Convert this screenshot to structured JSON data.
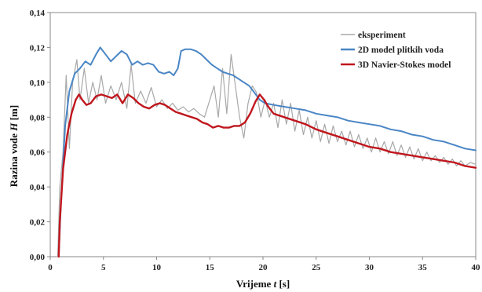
{
  "chart_data": {
    "type": "line",
    "xlabel_prefix": "Vrijeme ",
    "xlabel_var": "t",
    "xlabel_unit": " [s]",
    "ylabel_prefix": "Razina vode ",
    "ylabel_var": "H",
    "ylabel_unit": " [m]",
    "xlim": [
      0,
      40
    ],
    "ylim": [
      0,
      0.14
    ],
    "xticks": [
      "0",
      "5",
      "10",
      "15",
      "20",
      "25",
      "30",
      "35",
      "40"
    ],
    "yticks": [
      "0,00",
      "0,02",
      "0,04",
      "0,06",
      "0,08",
      "0,10",
      "0,12",
      "0,14"
    ],
    "grid": false,
    "legend_position": "top-right",
    "series": [
      {
        "name": "eksperiment",
        "color": "#a8a8a8",
        "points": [
          [
            0.7,
            0.0
          ],
          [
            0.9,
            0.04
          ],
          [
            1.2,
            0.06
          ],
          [
            1.5,
            0.104
          ],
          [
            1.8,
            0.062
          ],
          [
            2.1,
            0.1
          ],
          [
            2.5,
            0.113
          ],
          [
            2.8,
            0.09
          ],
          [
            3.2,
            0.108
          ],
          [
            3.6,
            0.088
          ],
          [
            4.0,
            0.1
          ],
          [
            4.4,
            0.09
          ],
          [
            4.8,
            0.104
          ],
          [
            5.2,
            0.088
          ],
          [
            5.7,
            0.098
          ],
          [
            6.2,
            0.09
          ],
          [
            6.7,
            0.1
          ],
          [
            7.2,
            0.085
          ],
          [
            7.6,
            0.11
          ],
          [
            8.0,
            0.088
          ],
          [
            8.5,
            0.095
          ],
          [
            9.0,
            0.088
          ],
          [
            9.5,
            0.097
          ],
          [
            10.0,
            0.086
          ],
          [
            10.5,
            0.09
          ],
          [
            11.0,
            0.085
          ],
          [
            11.5,
            0.088
          ],
          [
            12.0,
            0.084
          ],
          [
            12.5,
            0.086
          ],
          [
            13.0,
            0.083
          ],
          [
            13.5,
            0.085
          ],
          [
            14.0,
            0.082
          ],
          [
            14.5,
            0.08
          ],
          [
            15.0,
            0.09
          ],
          [
            15.4,
            0.098
          ],
          [
            15.8,
            0.08
          ],
          [
            16.2,
            0.108
          ],
          [
            16.6,
            0.082
          ],
          [
            17.0,
            0.116
          ],
          [
            17.4,
            0.098
          ],
          [
            17.8,
            0.08
          ],
          [
            18.2,
            0.068
          ],
          [
            18.6,
            0.088
          ],
          [
            19.0,
            0.098
          ],
          [
            19.4,
            0.094
          ],
          [
            19.8,
            0.08
          ],
          [
            20.2,
            0.09
          ],
          [
            20.6,
            0.08
          ],
          [
            21.0,
            0.088
          ],
          [
            21.4,
            0.074
          ],
          [
            21.8,
            0.09
          ],
          [
            22.2,
            0.076
          ],
          [
            22.6,
            0.088
          ],
          [
            23.0,
            0.072
          ],
          [
            23.4,
            0.084
          ],
          [
            23.8,
            0.07
          ],
          [
            24.2,
            0.08
          ],
          [
            24.6,
            0.068
          ],
          [
            25.0,
            0.078
          ],
          [
            25.4,
            0.066
          ],
          [
            25.8,
            0.076
          ],
          [
            26.2,
            0.065
          ],
          [
            26.6,
            0.075
          ],
          [
            27.0,
            0.066
          ],
          [
            27.4,
            0.072
          ],
          [
            27.8,
            0.064
          ],
          [
            28.2,
            0.072
          ],
          [
            28.6,
            0.063
          ],
          [
            29.0,
            0.07
          ],
          [
            29.4,
            0.062
          ],
          [
            29.8,
            0.068
          ],
          [
            30.2,
            0.06
          ],
          [
            30.6,
            0.068
          ],
          [
            31.0,
            0.06
          ],
          [
            31.4,
            0.066
          ],
          [
            31.8,
            0.059
          ],
          [
            32.2,
            0.066
          ],
          [
            32.6,
            0.058
          ],
          [
            33.0,
            0.064
          ],
          [
            33.4,
            0.057
          ],
          [
            33.8,
            0.063
          ],
          [
            34.2,
            0.056
          ],
          [
            34.6,
            0.062
          ],
          [
            35.0,
            0.055
          ],
          [
            35.4,
            0.06
          ],
          [
            35.8,
            0.055
          ],
          [
            36.2,
            0.058
          ],
          [
            36.6,
            0.054
          ],
          [
            37.0,
            0.057
          ],
          [
            37.4,
            0.053
          ],
          [
            37.8,
            0.056
          ],
          [
            38.2,
            0.052
          ],
          [
            38.6,
            0.055
          ],
          [
            39.0,
            0.052
          ],
          [
            39.5,
            0.054
          ],
          [
            40.0,
            0.053
          ]
        ]
      },
      {
        "name": "2D model plitkih voda",
        "color": "#4a86c5",
        "points": [
          [
            0.8,
            0.0
          ],
          [
            1.0,
            0.03
          ],
          [
            1.4,
            0.075
          ],
          [
            1.8,
            0.095
          ],
          [
            2.3,
            0.105
          ],
          [
            2.8,
            0.108
          ],
          [
            3.3,
            0.112
          ],
          [
            3.8,
            0.11
          ],
          [
            4.3,
            0.116
          ],
          [
            4.7,
            0.12
          ],
          [
            5.2,
            0.116
          ],
          [
            5.7,
            0.112
          ],
          [
            6.2,
            0.115
          ],
          [
            6.7,
            0.118
          ],
          [
            7.2,
            0.116
          ],
          [
            7.7,
            0.11
          ],
          [
            8.2,
            0.112
          ],
          [
            8.7,
            0.11
          ],
          [
            9.2,
            0.111
          ],
          [
            9.7,
            0.11
          ],
          [
            10.2,
            0.106
          ],
          [
            10.7,
            0.105
          ],
          [
            11.2,
            0.106
          ],
          [
            11.6,
            0.104
          ],
          [
            12.0,
            0.108
          ],
          [
            12.3,
            0.118
          ],
          [
            12.7,
            0.119
          ],
          [
            13.2,
            0.119
          ],
          [
            13.7,
            0.118
          ],
          [
            14.2,
            0.116
          ],
          [
            14.7,
            0.113
          ],
          [
            15.2,
            0.11
          ],
          [
            15.7,
            0.108
          ],
          [
            16.2,
            0.106
          ],
          [
            16.7,
            0.105
          ],
          [
            17.2,
            0.104
          ],
          [
            17.7,
            0.102
          ],
          [
            18.2,
            0.1
          ],
          [
            18.7,
            0.098
          ],
          [
            19.2,
            0.094
          ],
          [
            19.7,
            0.09
          ],
          [
            20.2,
            0.088
          ],
          [
            21.0,
            0.087
          ],
          [
            22.0,
            0.086
          ],
          [
            23.0,
            0.085
          ],
          [
            24.0,
            0.084
          ],
          [
            25.0,
            0.082
          ],
          [
            26.0,
            0.081
          ],
          [
            27.0,
            0.08
          ],
          [
            28.0,
            0.078
          ],
          [
            29.0,
            0.077
          ],
          [
            30.0,
            0.076
          ],
          [
            31.0,
            0.075
          ],
          [
            32.0,
            0.073
          ],
          [
            33.0,
            0.072
          ],
          [
            34.0,
            0.07
          ],
          [
            35.0,
            0.069
          ],
          [
            36.0,
            0.067
          ],
          [
            37.0,
            0.066
          ],
          [
            38.0,
            0.064
          ],
          [
            39.0,
            0.062
          ],
          [
            40.0,
            0.061
          ]
        ]
      },
      {
        "name": "3D Navier-Stokes model",
        "color": "#c0161d",
        "points": [
          [
            0.8,
            0.0
          ],
          [
            0.9,
            0.02
          ],
          [
            1.2,
            0.05
          ],
          [
            1.6,
            0.07
          ],
          [
            2.0,
            0.082
          ],
          [
            2.4,
            0.09
          ],
          [
            2.7,
            0.093
          ],
          [
            3.0,
            0.09
          ],
          [
            3.4,
            0.087
          ],
          [
            3.8,
            0.088
          ],
          [
            4.3,
            0.092
          ],
          [
            4.8,
            0.093
          ],
          [
            5.3,
            0.092
          ],
          [
            5.8,
            0.091
          ],
          [
            6.3,
            0.093
          ],
          [
            6.8,
            0.088
          ],
          [
            7.3,
            0.093
          ],
          [
            7.8,
            0.091
          ],
          [
            8.3,
            0.088
          ],
          [
            8.8,
            0.086
          ],
          [
            9.3,
            0.085
          ],
          [
            9.8,
            0.087
          ],
          [
            10.3,
            0.088
          ],
          [
            10.8,
            0.087
          ],
          [
            11.3,
            0.085
          ],
          [
            11.8,
            0.083
          ],
          [
            12.3,
            0.082
          ],
          [
            12.8,
            0.081
          ],
          [
            13.3,
            0.08
          ],
          [
            13.8,
            0.079
          ],
          [
            14.3,
            0.077
          ],
          [
            14.8,
            0.076
          ],
          [
            15.3,
            0.074
          ],
          [
            15.8,
            0.075
          ],
          [
            16.3,
            0.074
          ],
          [
            16.8,
            0.074
          ],
          [
            17.3,
            0.075
          ],
          [
            17.8,
            0.075
          ],
          [
            18.3,
            0.077
          ],
          [
            18.8,
            0.082
          ],
          [
            19.3,
            0.089
          ],
          [
            19.7,
            0.093
          ],
          [
            20.1,
            0.09
          ],
          [
            20.5,
            0.086
          ],
          [
            21.0,
            0.082
          ],
          [
            22.0,
            0.08
          ],
          [
            23.0,
            0.078
          ],
          [
            24.0,
            0.076
          ],
          [
            25.0,
            0.073
          ],
          [
            26.0,
            0.071
          ],
          [
            27.0,
            0.069
          ],
          [
            28.0,
            0.067
          ],
          [
            29.0,
            0.065
          ],
          [
            30.0,
            0.063
          ],
          [
            31.0,
            0.062
          ],
          [
            32.0,
            0.06
          ],
          [
            33.0,
            0.059
          ],
          [
            34.0,
            0.058
          ],
          [
            35.0,
            0.057
          ],
          [
            36.0,
            0.056
          ],
          [
            37.0,
            0.055
          ],
          [
            38.0,
            0.054
          ],
          [
            39.0,
            0.052
          ],
          [
            40.0,
            0.051
          ]
        ]
      }
    ]
  }
}
